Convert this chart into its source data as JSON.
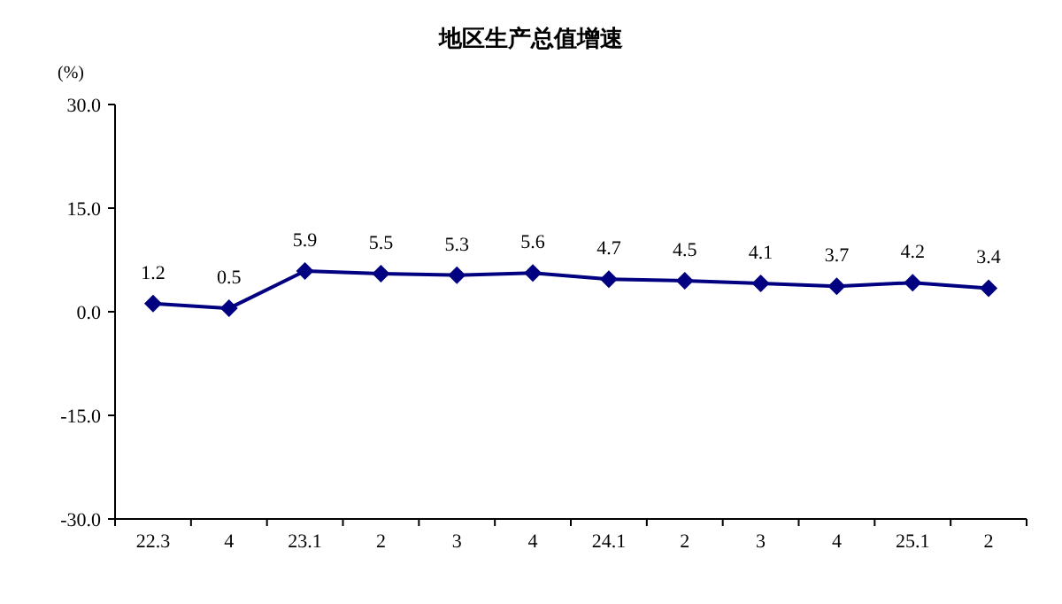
{
  "chart_data": {
    "type": "line",
    "title": "地区生产总值增速",
    "ylabel": "(%)",
    "categories": [
      "22.3",
      "4",
      "23.1",
      "2",
      "3",
      "4",
      "24.1",
      "2",
      "3",
      "4",
      "25.1",
      "2"
    ],
    "series": [
      {
        "color": "#000080",
        "values": [
          1.2,
          0.5,
          5.9,
          5.5,
          5.3,
          5.6,
          4.7,
          4.5,
          4.1,
          3.7,
          4.2,
          3.4
        ]
      }
    ],
    "ylim": [
      -30,
      30
    ],
    "yticks": [
      {
        "value": -30,
        "label": "-30.0"
      },
      {
        "value": -15,
        "label": "-15.0"
      },
      {
        "value": 0,
        "label": "0.0"
      },
      {
        "value": 15,
        "label": "15.0"
      },
      {
        "value": 30,
        "label": "30.0"
      }
    ],
    "data_labels": true,
    "marker": "diamond",
    "line_style": "solid",
    "grid": false
  }
}
